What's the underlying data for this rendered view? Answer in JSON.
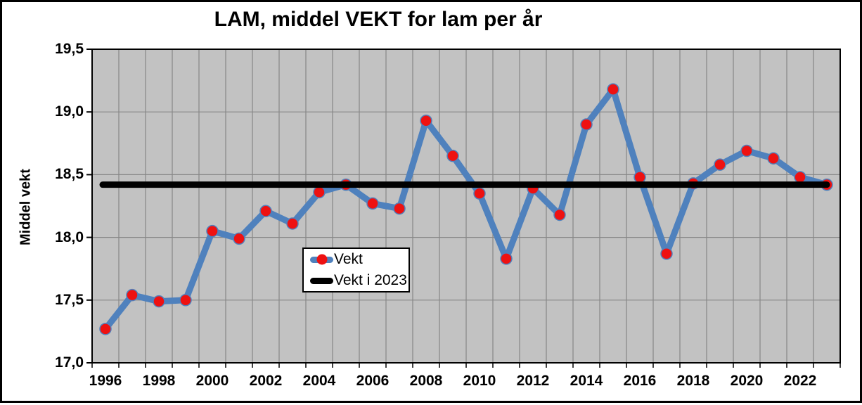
{
  "window": {
    "background": "#ffffff",
    "frame_border_color": "#000000"
  },
  "chart_data": {
    "type": "line",
    "title": "LAM, middel VEKT for lam per år",
    "ylabel": "Middel vekt",
    "xlabel": "",
    "ylim": [
      17.0,
      19.5
    ],
    "ytick_step": 0.5,
    "yticks": [
      {
        "value": 19.5,
        "label": "19,5"
      },
      {
        "value": 19.0,
        "label": "19,0"
      },
      {
        "value": 18.5,
        "label": "18,5"
      },
      {
        "value": 18.0,
        "label": "18,0"
      },
      {
        "value": 17.5,
        "label": "17,5"
      },
      {
        "value": 17.0,
        "label": "17,0"
      }
    ],
    "x": [
      1996,
      1997,
      1998,
      1999,
      2000,
      2001,
      2002,
      2003,
      2004,
      2005,
      2006,
      2007,
      2008,
      2009,
      2010,
      2011,
      2012,
      2013,
      2014,
      2015,
      2016,
      2017,
      2018,
      2019,
      2020,
      2021,
      2022,
      2023
    ],
    "xtick_label_every": 2,
    "grid": true,
    "plot_bg": "#c2c2c2",
    "grid_color": "#878787",
    "axis_color": "#000000",
    "series": [
      {
        "name": "Vekt",
        "type": "line-markers",
        "color": "#4f81bd",
        "marker_color": "#ee1111",
        "values": [
          17.27,
          17.54,
          17.49,
          17.5,
          18.05,
          17.99,
          18.21,
          18.11,
          18.36,
          18.42,
          18.27,
          18.23,
          18.93,
          18.65,
          18.35,
          17.83,
          18.39,
          18.18,
          18.9,
          19.18,
          18.48,
          17.87,
          18.43,
          18.58,
          18.69,
          18.63,
          18.48,
          18.42
        ]
      },
      {
        "name": "Vekt i 2023",
        "type": "reference-line",
        "color": "#000000",
        "value": 18.42
      }
    ],
    "legend_position": "inside-center-left"
  },
  "legend": {
    "items": [
      {
        "label": "Vekt"
      },
      {
        "label": "Vekt i 2023"
      }
    ]
  }
}
